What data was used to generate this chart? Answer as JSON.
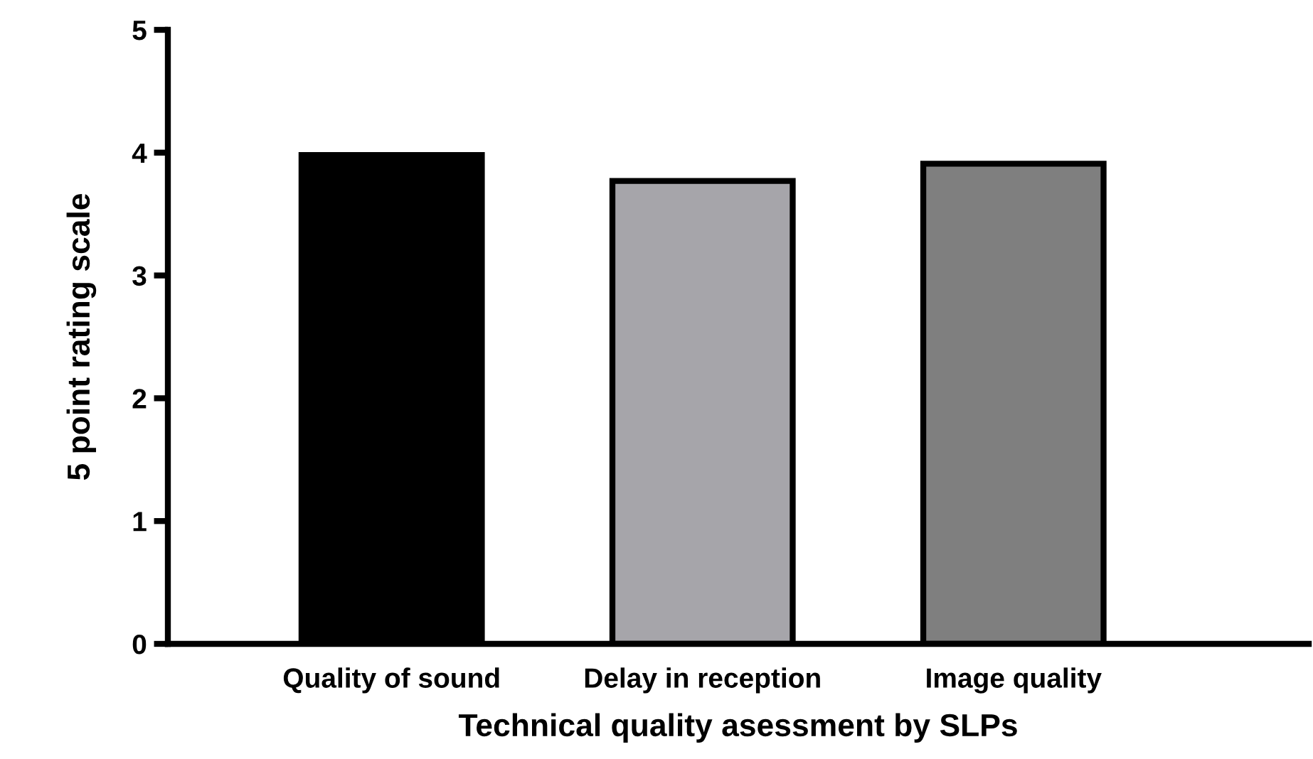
{
  "chart_data": {
    "type": "bar",
    "xlabel": "Technical quality asessment by SLPs",
    "ylabel": "5 point rating scale",
    "categories": [
      "Quality of sound",
      "Delay in reception",
      "Image quality"
    ],
    "values": [
      3.98,
      3.77,
      3.91
    ],
    "colors": [
      "#000000",
      "#a6a5aa",
      "#7f7f7f"
    ],
    "ylim": [
      0,
      5
    ],
    "yticks": [
      0,
      1,
      2,
      3,
      4,
      5
    ],
    "grid": false,
    "legend": false
  }
}
